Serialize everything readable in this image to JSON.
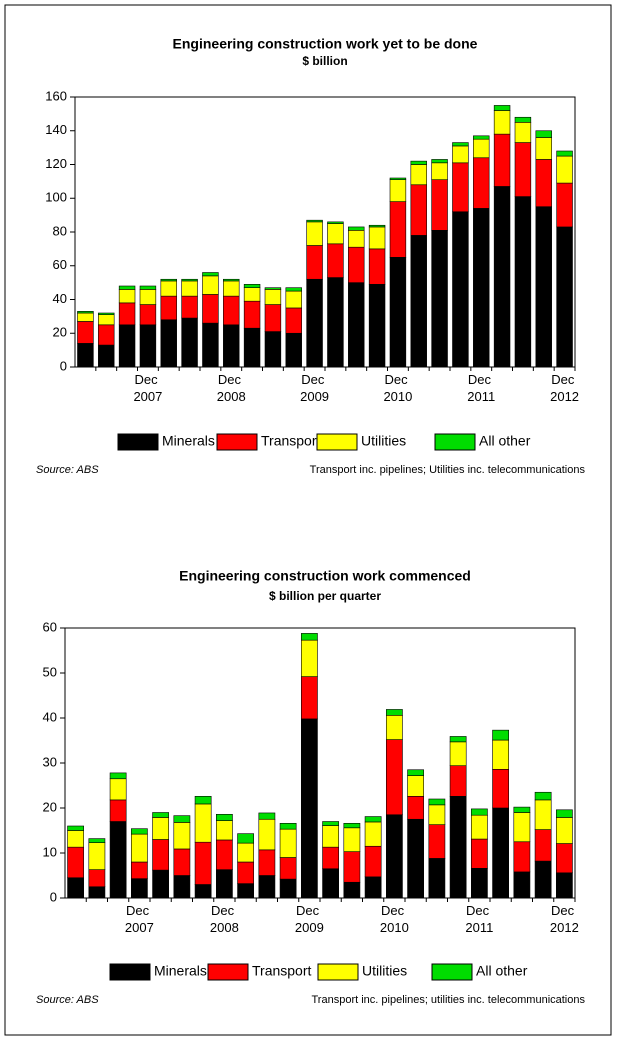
{
  "chart_data": [
    {
      "type": "bar",
      "stacked": true,
      "title": "Engineering construction work yet to be done",
      "subtitle": "$ billion",
      "categories": [
        null,
        null,
        null,
        "Dec 2007",
        null,
        null,
        null,
        "Dec 2008",
        null,
        null,
        null,
        "Dec 2009",
        null,
        null,
        null,
        "Dec 2010",
        null,
        null,
        null,
        "Dec 2011",
        null,
        null,
        null,
        "Dec 2012"
      ],
      "series": [
        {
          "name": "Minerals",
          "color": "#000000",
          "values": [
            14,
            13,
            25,
            25,
            28,
            29,
            26,
            25,
            23,
            21,
            20,
            52,
            53,
            50,
            49,
            65,
            78,
            81,
            92,
            94,
            107,
            101,
            95,
            83
          ]
        },
        {
          "name": "Transport",
          "color": "#ff0000",
          "values": [
            13,
            12,
            13,
            12,
            14,
            13,
            17,
            17,
            16,
            16,
            15,
            20,
            20,
            21,
            21,
            33,
            30,
            30,
            29,
            30,
            31,
            32,
            28,
            26
          ]
        },
        {
          "name": "Utilities",
          "color": "#ffff00",
          "values": [
            5,
            6,
            8,
            9,
            9,
            9,
            11,
            9,
            8,
            9,
            10,
            14,
            12,
            10,
            13,
            13,
            12,
            10,
            10,
            11,
            14,
            12,
            13,
            16
          ]
        },
        {
          "name": "All other",
          "color": "#00dd00",
          "values": [
            1,
            1,
            2,
            2,
            1,
            1,
            2,
            1,
            2,
            1,
            2,
            1,
            1,
            2,
            1,
            1,
            2,
            2,
            2,
            2,
            3,
            3,
            4,
            3
          ]
        }
      ],
      "ylim": [
        0,
        160
      ],
      "yticks": [
        0,
        20,
        40,
        60,
        80,
        100,
        120,
        140,
        160
      ],
      "source": "Source: ABS",
      "note": "Transport inc. pipelines; Utilities inc. telecommunications"
    },
    {
      "type": "bar",
      "stacked": true,
      "title": "Engineering construction work commenced",
      "subtitle": "$ billion per quarter",
      "categories": [
        null,
        null,
        null,
        "Dec 2007",
        null,
        null,
        null,
        "Dec 2008",
        null,
        null,
        null,
        "Dec 2009",
        null,
        null,
        null,
        "Dec 2010",
        null,
        null,
        null,
        "Dec 2011",
        null,
        null,
        null,
        "Dec 2012"
      ],
      "series": [
        {
          "name": "Minerals",
          "color": "#000000",
          "values": [
            4.5,
            2.5,
            17,
            4.3,
            6.2,
            5,
            3,
            6.3,
            3.2,
            5,
            4.2,
            39.8,
            6.5,
            3.5,
            4.7,
            18.5,
            17.5,
            8.8,
            22.6,
            6.6,
            20,
            5.8,
            8.2,
            5.6
          ]
        },
        {
          "name": "Transport",
          "color": "#ff0000",
          "values": [
            6.8,
            3.8,
            4.8,
            3.7,
            6.8,
            5.9,
            9.4,
            6.6,
            4.8,
            5.7,
            4.8,
            9.4,
            4.8,
            6.8,
            6.8,
            16.7,
            5.1,
            7.5,
            6.8,
            6.5,
            8.6,
            6.7,
            7,
            6.5
          ]
        },
        {
          "name": "Utilities",
          "color": "#ffff00",
          "values": [
            3.7,
            6,
            4.7,
            6.2,
            4.9,
            5.9,
            8.5,
            4.3,
            4.2,
            6.8,
            6.3,
            8.1,
            4.8,
            5.3,
            5.4,
            5.4,
            4.6,
            4.4,
            5.3,
            5.3,
            6.5,
            6.5,
            6.6,
            5.8
          ]
        },
        {
          "name": "All other",
          "color": "#00dd00",
          "values": [
            1,
            0.9,
            1.3,
            1.2,
            1.1,
            1.5,
            1.7,
            1.4,
            2.1,
            1.4,
            1.3,
            1.5,
            0.9,
            1,
            1.2,
            1.3,
            1.3,
            1.3,
            1.2,
            1.4,
            2.2,
            1.2,
            1.7,
            1.7
          ]
        }
      ],
      "ylim": [
        0,
        60
      ],
      "yticks": [
        0,
        10,
        20,
        30,
        40,
        50,
        60
      ],
      "source": "Source: ABS",
      "note": "Transport inc. pipelines; utilities inc. telecommunications"
    }
  ]
}
